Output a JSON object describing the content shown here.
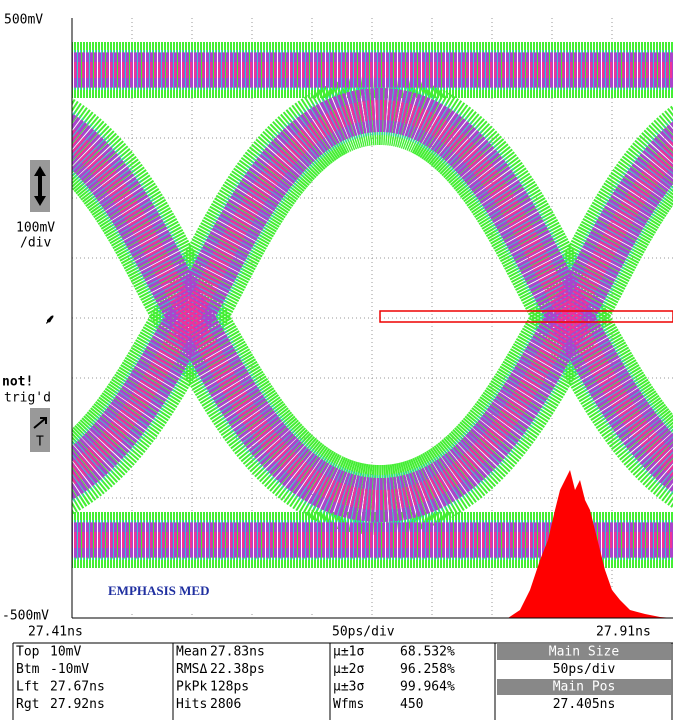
{
  "screen": {
    "y_top": "500mV",
    "y_scale": "100mV",
    "y_scale_unit": "/div",
    "y_bottom": "-500mV",
    "x_left": "27.41ns",
    "x_scale": "50ps/div",
    "x_right": "27.91ns",
    "annotation": "EMPHASIS MED",
    "trigger_status": "not!",
    "trigger_status_2": "trig'd",
    "trigger_icon": "T"
  },
  "table": {
    "rows": [
      [
        "Top",
        "10mV",
        "Mean",
        "27.83ns",
        "μ±1σ",
        "68.532%",
        "Main Size"
      ],
      [
        "Btm",
        "-10mV",
        "RMSΔ",
        "22.38ps",
        "μ±2σ",
        "96.258%",
        "50ps/div"
      ],
      [
        "Lft",
        "27.67ns",
        "PkPk",
        "128ps",
        "μ±3σ",
        "99.964%",
        "Main Pos"
      ],
      [
        "Rgt",
        "27.92ns",
        "Hits",
        "2806",
        "Wfms",
        "450",
        "27.405ns"
      ]
    ]
  }
}
